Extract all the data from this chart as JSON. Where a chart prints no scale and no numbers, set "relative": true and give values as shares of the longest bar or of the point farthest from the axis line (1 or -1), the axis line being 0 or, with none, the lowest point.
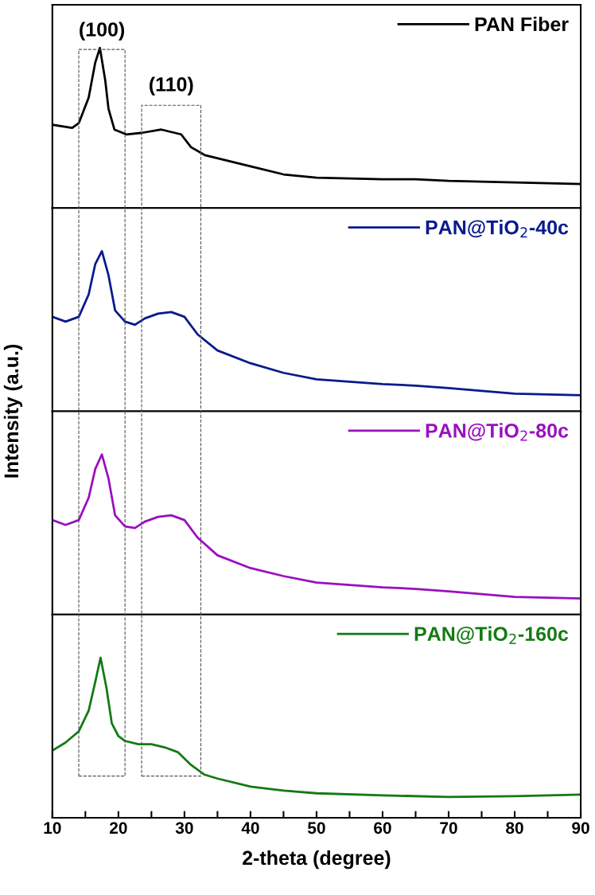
{
  "chart_data": [
    {
      "type": "line",
      "relative": true,
      "xlim": [
        10,
        90
      ],
      "tick_labels": false,
      "legend": "top right",
      "grid": false,
      "annotations": [
        "(100)",
        "(110)"
      ],
      "series": [
        {
          "name": "PAN Fiber",
          "color": "#000000",
          "x": [
            10,
            13,
            14,
            15.5,
            16.5,
            17.2,
            18,
            18.5,
            19.4,
            21.2,
            23.6,
            26.5,
            29.5,
            31,
            33.1,
            40,
            45,
            50,
            60,
            65,
            70,
            80,
            90
          ],
          "values": [
            0.52,
            0.5,
            0.53,
            0.69,
            0.91,
            1.0,
            0.8,
            0.62,
            0.49,
            0.46,
            0.47,
            0.49,
            0.46,
            0.38,
            0.33,
            0.26,
            0.21,
            0.19,
            0.18,
            0.18,
            0.17,
            0.16,
            0.15
          ]
        }
      ]
    },
    {
      "type": "line",
      "relative": true,
      "xlim": [
        10,
        90
      ],
      "tick_labels": false,
      "legend": "top right",
      "grid": false,
      "series": [
        {
          "name": "PAN@TiO$_{2}$-40c",
          "color": "#0a1a8c",
          "x": [
            10,
            12,
            14,
            15.5,
            16.5,
            17.5,
            18.5,
            19.5,
            21,
            22.5,
            24,
            26,
            28,
            30,
            32,
            35,
            40,
            45,
            50,
            60,
            65,
            70,
            80,
            90
          ],
          "values": [
            0.59,
            0.56,
            0.59,
            0.73,
            0.92,
            1.0,
            0.85,
            0.63,
            0.56,
            0.54,
            0.58,
            0.61,
            0.62,
            0.59,
            0.48,
            0.38,
            0.3,
            0.24,
            0.2,
            0.17,
            0.16,
            0.145,
            0.11,
            0.1
          ]
        }
      ]
    },
    {
      "type": "line",
      "relative": true,
      "xlim": [
        10,
        90
      ],
      "tick_labels": false,
      "legend": "top right",
      "grid": false,
      "ylabel": "Intensity (a.u.)",
      "series": [
        {
          "name": "PAN@TiO$_{2}$-80c",
          "color": "#9b0fc0",
          "x": [
            10,
            12,
            14,
            15.5,
            16.5,
            17.5,
            18.5,
            19.5,
            21,
            22.5,
            24,
            26,
            28,
            30,
            32,
            35,
            40,
            45,
            50,
            60,
            65,
            70,
            80,
            90
          ],
          "values": [
            0.59,
            0.56,
            0.59,
            0.73,
            0.91,
            1.0,
            0.85,
            0.62,
            0.55,
            0.54,
            0.58,
            0.61,
            0.62,
            0.59,
            0.48,
            0.37,
            0.29,
            0.24,
            0.2,
            0.17,
            0.16,
            0.145,
            0.11,
            0.1
          ]
        }
      ]
    },
    {
      "type": "line",
      "relative": true,
      "xlim": [
        10,
        90
      ],
      "tick_labels": "x",
      "legend": "top right",
      "grid": false,
      "xlabel": "2-theta (degree)",
      "xticks": [
        10,
        {
          "value": 15,
          "label": null
        },
        20,
        {
          "value": 25,
          "label": null
        },
        30,
        {
          "value": 35,
          "label": null
        },
        40,
        {
          "value": 45,
          "label": null
        },
        50,
        {
          "value": 55,
          "label": null
        },
        60,
        {
          "value": 65,
          "label": null
        },
        70,
        {
          "value": 75,
          "label": null
        },
        80,
        {
          "value": 85,
          "label": null
        },
        90
      ],
      "series": [
        {
          "name": "PAN@TiO$_{2}$-160c",
          "color": "#137a13",
          "x": [
            10,
            12,
            14,
            15.5,
            16.5,
            17.3,
            18.2,
            19,
            20,
            21,
            23,
            25,
            27,
            29,
            31,
            33,
            35,
            40,
            45,
            50,
            60,
            70,
            80,
            90
          ],
          "values": [
            0.42,
            0.47,
            0.54,
            0.67,
            0.85,
            1.0,
            0.81,
            0.59,
            0.51,
            0.48,
            0.46,
            0.46,
            0.44,
            0.41,
            0.33,
            0.27,
            0.245,
            0.195,
            0.17,
            0.153,
            0.14,
            0.13,
            0.135,
            0.145
          ]
        }
      ]
    }
  ]
}
